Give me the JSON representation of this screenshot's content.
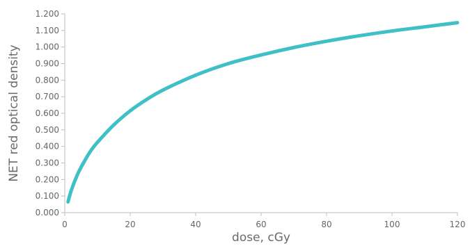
{
  "chart_data": {
    "type": "line",
    "title": "",
    "xlabel": "dose, cGy",
    "ylabel": "NET red optical density",
    "xlim": [
      0,
      120
    ],
    "ylim": [
      0,
      1.2
    ],
    "x_ticks": [
      "0",
      "20",
      "40",
      "60",
      "80",
      "100",
      "120"
    ],
    "y_ticks": [
      "0.000",
      "0.100",
      "0.200",
      "0.300",
      "0.400",
      "0.500",
      "0.600",
      "0.700",
      "0.800",
      "0.900",
      "1.000",
      "1.100",
      "1.200"
    ],
    "grid": false,
    "legend": "none",
    "series": [
      {
        "color": "#3fbfc6",
        "x": [
          1,
          2,
          4,
          6,
          8,
          10,
          15,
          20,
          25,
          30,
          40,
          50,
          60,
          70,
          80,
          90,
          100,
          110,
          120
        ],
        "y": [
          0.065,
          0.135,
          0.235,
          0.31,
          0.375,
          0.425,
          0.53,
          0.615,
          0.683,
          0.74,
          0.83,
          0.9,
          0.952,
          0.997,
          1.035,
          1.068,
          1.097,
          1.122,
          1.147
        ]
      }
    ]
  }
}
